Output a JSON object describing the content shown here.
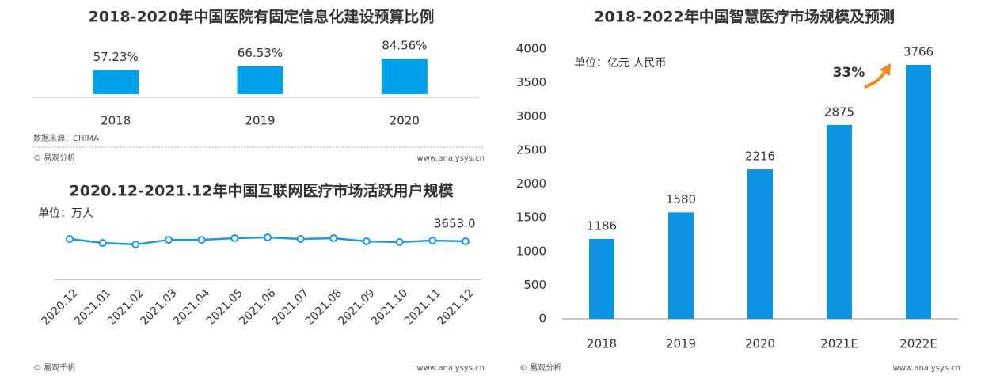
{
  "chart_data": [
    {
      "type": "bar",
      "title": "2018-2020年中国医院有固定信息化建设预算比例",
      "categories": [
        "2018",
        "2019",
        "2020"
      ],
      "values": [
        57.23,
        66.53,
        84.56
      ],
      "value_labels": [
        "57.23%",
        "66.53%",
        "84.56%"
      ],
      "color": "#00a0ea",
      "source": "数据来源：CHIMA",
      "copyright": "© 易观分析",
      "website": "www.analysys.cn"
    },
    {
      "type": "line",
      "title": "2020.12-2021.12年中国互联网医疗市场活跃用户规模",
      "unit": "单位：万人",
      "categories": [
        "2020.12",
        "2021.01",
        "2021.02",
        "2021.03",
        "2021.04",
        "2021.05",
        "2021.06",
        "2021.07",
        "2021.08",
        "2021.09",
        "2021.10",
        "2021.11",
        "2021.12"
      ],
      "values": [
        3880,
        3500,
        3350,
        3800,
        3800,
        3960,
        4030,
        3880,
        3960,
        3650,
        3580,
        3730,
        3653
      ],
      "value_labels": [
        null,
        null,
        null,
        null,
        null,
        null,
        null,
        null,
        null,
        null,
        null,
        null,
        "3653.0"
      ],
      "color": "#1a9be0",
      "copyright": "© 易观千帆",
      "website": "www.analysys.cn"
    },
    {
      "type": "bar",
      "title": "2018-2022年中国智慧医疗市场规模及预测",
      "unit": "单位：亿元 人民币",
      "categories": [
        "2018",
        "2019",
        "2020",
        "2021E",
        "2022E"
      ],
      "values": [
        1186,
        1580,
        2216,
        2875,
        3766
      ],
      "color": "#0d94e2",
      "ylim": [
        0,
        4000
      ],
      "yticks": [
        0,
        500,
        1000,
        1500,
        2000,
        2500,
        3000,
        3500,
        4000
      ],
      "grid": false,
      "annotation": "33%",
      "annotation_color": "#f08a1c",
      "copyright": "© 易观分析",
      "website": "www.analysys.cn"
    }
  ]
}
